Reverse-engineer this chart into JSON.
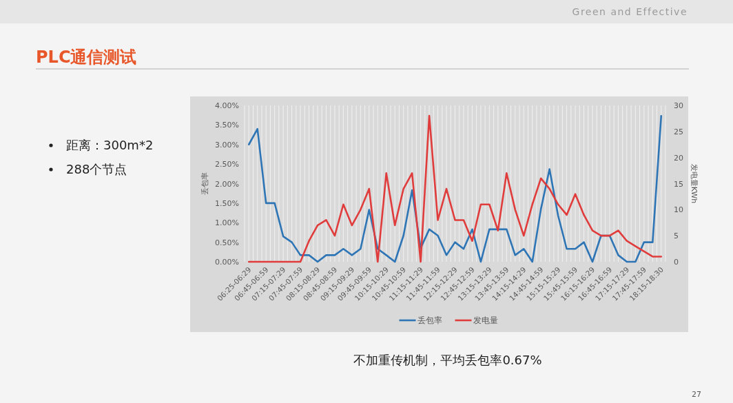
{
  "chart_data": {
    "type": "line",
    "title": "PLC通信测试",
    "categories": [
      "06:25-06:29",
      null,
      "06:45-06:59",
      null,
      "07:15-07:29",
      null,
      "07:45-07:59",
      null,
      "08:15-08:29",
      null,
      "08:45-08:59",
      null,
      "09:15-09:29",
      null,
      "09:45-09:59",
      null,
      "10:15-10:29",
      null,
      "10:45-10:59",
      null,
      "11:15-11:29",
      null,
      "11:45-11:59",
      null,
      "12:15-12:29",
      null,
      "12:45-12:59",
      null,
      "13:15-13:29",
      null,
      "13:45-13:59",
      null,
      "14:15-14:29",
      null,
      "14:45-14:59",
      null,
      "15:15-15:29",
      null,
      "15:45-15:59",
      null,
      "16:15-16:29",
      null,
      "16:45-16:59",
      null,
      "17:15-17:29",
      null,
      "17:45-17:59",
      null,
      "18:15-18:30"
    ],
    "series": [
      {
        "name": "丢包率",
        "color": "#2e75b6",
        "values": [
          3.0,
          3.4,
          1.5,
          1.5,
          0.65,
          0.5,
          0.17,
          0.17,
          0,
          0.17,
          0.17,
          0.33,
          0.17,
          0.33,
          1.33,
          0.33,
          0.17,
          0,
          0.67,
          1.83,
          0.35,
          0.83,
          0.67,
          0.17,
          0.5,
          0.33,
          0.83,
          0,
          0.83,
          0.83,
          0.83,
          0.17,
          0.33,
          0,
          1.35,
          2.37,
          1.18,
          0.33,
          0.33,
          0.5,
          0,
          0.67,
          0.67,
          0.17,
          0,
          0,
          0.5,
          0.5,
          3.73
        ]
      },
      {
        "name": "发电量",
        "color": "#e03c3c",
        "axis": "y2",
        "values": [
          0,
          0,
          0,
          0,
          0,
          0,
          0,
          4,
          7,
          8,
          5,
          11,
          7,
          10,
          14,
          0,
          17,
          7,
          14,
          17,
          0,
          28,
          8,
          14,
          8,
          8,
          4,
          11,
          11,
          6,
          17,
          10,
          5,
          11,
          16,
          14,
          11,
          9,
          13,
          9,
          6,
          5,
          5,
          6,
          4,
          3,
          2,
          1,
          1
        ]
      }
    ],
    "ylabel": "丢包率",
    "y2label": "发电量KWh",
    "ylim": [
      0,
      4
    ],
    "yticks": [
      {
        "value": 0,
        "label": "0.00%"
      },
      {
        "value": 0.5,
        "label": "0.50%"
      },
      {
        "value": 1,
        "label": "1.00%"
      },
      {
        "value": 1.5,
        "label": "1.50%"
      },
      {
        "value": 2,
        "label": "2.00%"
      },
      {
        "value": 2.5,
        "label": "2.50%"
      },
      {
        "value": 3,
        "label": "3.00%"
      },
      {
        "value": 3.5,
        "label": "3.50%"
      },
      {
        "value": 4,
        "label": "4.00%"
      }
    ],
    "y2lim": [
      0,
      30
    ],
    "y2ticks": [
      0,
      5,
      10,
      15,
      20,
      25,
      30
    ],
    "grid": "x",
    "legend": "bottom",
    "annotations": [
      "距离：300m*2",
      "288个节点",
      "不加重传机制，平均丢包率0.67%",
      "Green and Effective",
      "27"
    ]
  }
}
